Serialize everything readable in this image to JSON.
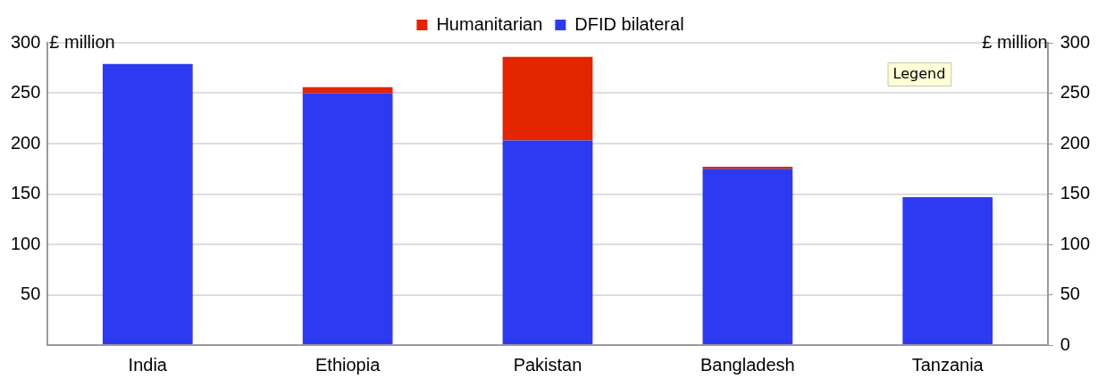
{
  "chart_data": {
    "type": "bar",
    "stacked": true,
    "categories": [
      "India",
      "Ethiopia",
      "Pakistan",
      "Bangladesh",
      "Tanzania"
    ],
    "series": [
      {
        "name": "DFID bilateral",
        "color": "#2e3af2",
        "values": [
          279,
          250,
          203,
          175,
          146
        ]
      },
      {
        "name": "Humanitarian",
        "color": "#e32400",
        "values": [
          0,
          6,
          83,
          2,
          1
        ]
      }
    ],
    "ylabel": "£ million",
    "y2label": "£ million",
    "ylim": [
      0,
      300
    ],
    "yticks": [
      {
        "value": 0,
        "label": null
      },
      50,
      100,
      150,
      200,
      250,
      300
    ],
    "y2lim": [
      0,
      300
    ],
    "y2ticks": [
      0,
      50,
      100,
      150,
      200,
      250,
      300
    ],
    "annotations": [
      "Legend"
    ],
    "grid": "y",
    "legend": "top"
  }
}
